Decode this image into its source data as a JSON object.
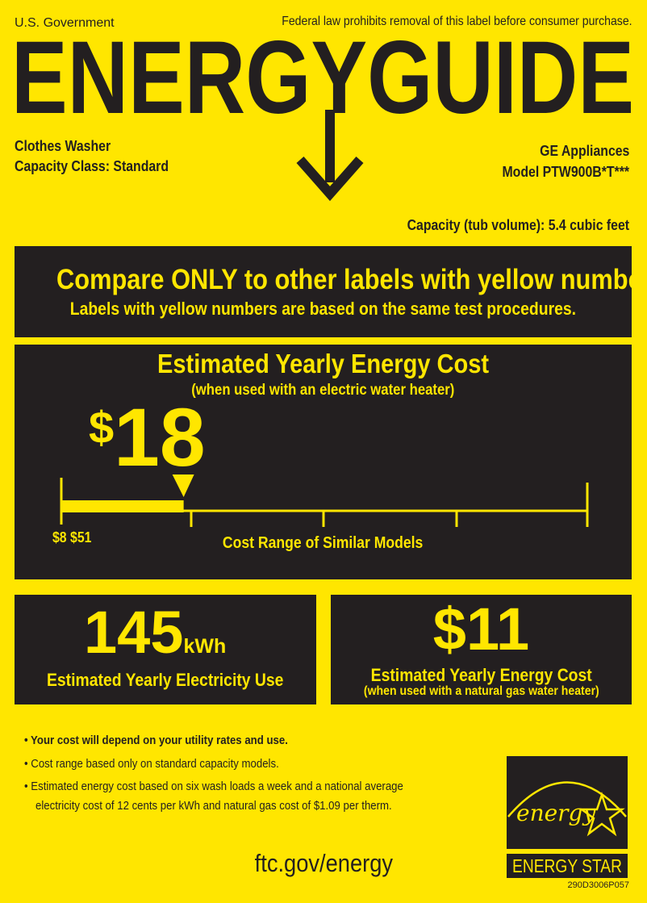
{
  "header": {
    "issuer": "U.S. Government",
    "notice": "Federal law prohibits removal of this label before consumer purchase.",
    "title": "ENERGYGUIDE"
  },
  "product": {
    "type": "Clothes Washer",
    "capacity_class": "Capacity Class: Standard",
    "brand": "GE Appliances",
    "model": "Model PTW900B*T***",
    "capacity": "Capacity (tub volume): 5.4 cubic feet"
  },
  "compare": {
    "line1": "Compare ONLY to other labels with yellow numbers.",
    "line2": "Labels with yellow numbers are based on the same test procedures."
  },
  "main_cost": {
    "title": "Estimated Yearly Energy Cost",
    "subtitle": "(when used with an electric water heater)",
    "currency": "$",
    "value": "18",
    "range_min": "$8",
    "range_max": "$51",
    "range_label": "Cost Range of Similar Models",
    "range_min_value": 8,
    "range_max_value": 51,
    "marker_value": 18
  },
  "electricity": {
    "value": "145",
    "unit": "kWh",
    "label": "Estimated Yearly Electricity Use"
  },
  "gas_cost": {
    "currency": "$",
    "value": "11",
    "label": "Estimated Yearly Energy Cost",
    "sublabel": "(when used with a natural gas water heater)"
  },
  "notes": [
    "Your cost will depend on your utility rates and use.",
    "Cost range based only on standard capacity models.",
    "Estimated energy cost based on six wash loads a week and a national average",
    "electricity cost of 12 cents per kWh and natural gas cost of $1.09 per therm."
  ],
  "footer": {
    "url": "ftc.gov/energy",
    "energy_star_script": "energy",
    "energy_star_label": "ENERGY STAR",
    "code": "290D3006P057"
  },
  "colors": {
    "yellow": "#FFE600",
    "dark": "#231f20"
  }
}
